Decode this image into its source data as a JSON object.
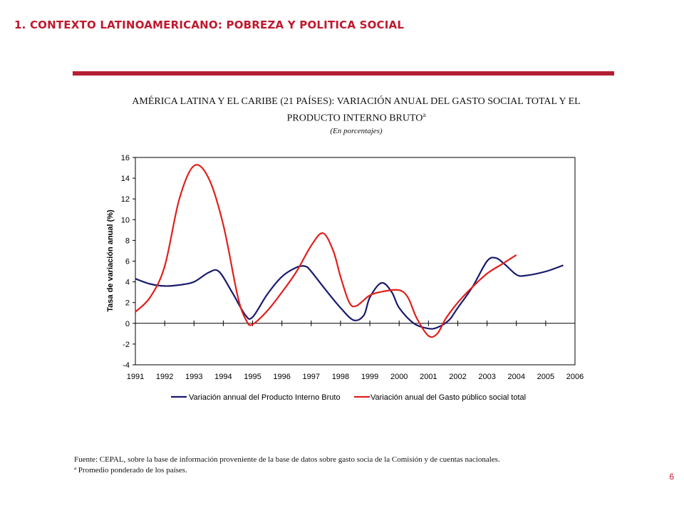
{
  "header": "1. CONTEXTO LATINOAMERICANO: POBREZA Y POLITICA SOCIAL",
  "title_line1": "AMÉRICA LATINA Y EL CARIBE (21 PAÍSES): VARIACIÓN ANUAL DEL GASTO SOCIAL TOTAL Y EL",
  "title_line2": "PRODUCTO INTERNO BRUTO",
  "title_sup": "a",
  "subtitle": "(En porcentajes)",
  "source_line1": "Fuente: CEPAL, sobre la base de información proveniente de la base de datos sobre gasto socia de la Comisión y de cuentas nacionales.",
  "source_line2": "ª Promedio ponderado de los países.",
  "page_number": "6",
  "chart_data": {
    "type": "line",
    "ylabel": "Tasa de variación anual (%)",
    "xlabel": "",
    "x": [
      "1991",
      "1992",
      "1993",
      "1994",
      "1995",
      "1996",
      "1997",
      "1998",
      "1999",
      "2000",
      "2001",
      "2002",
      "2003",
      "2004",
      "2005",
      "2006"
    ],
    "ylim": [
      -4,
      16
    ],
    "yticks": [
      -4,
      -2,
      0,
      2,
      4,
      6,
      8,
      10,
      12,
      14,
      16
    ],
    "grid": false,
    "legend": "bottom",
    "series": [
      {
        "name": "Variación annual del Producto Interno Bruto",
        "color": "#1a1a6e",
        "points": [
          [
            1991,
            4.3
          ],
          [
            1991.5,
            3.8
          ],
          [
            1992,
            3.6
          ],
          [
            1992.5,
            3.7
          ],
          [
            1993,
            4.0
          ],
          [
            1993.5,
            4.9
          ],
          [
            1993.85,
            5.0
          ],
          [
            1994.3,
            3.0
          ],
          [
            1994.75,
            0.8
          ],
          [
            1995,
            0.6
          ],
          [
            1995.5,
            2.8
          ],
          [
            1996,
            4.5
          ],
          [
            1996.5,
            5.4
          ],
          [
            1996.8,
            5.5
          ],
          [
            1997,
            5.0
          ],
          [
            1997.5,
            3.2
          ],
          [
            1998,
            1.5
          ],
          [
            1998.45,
            0.3
          ],
          [
            1998.8,
            0.8
          ],
          [
            1999,
            2.5
          ],
          [
            1999.4,
            3.9
          ],
          [
            1999.75,
            3.0
          ],
          [
            2000,
            1.5
          ],
          [
            2000.5,
            0.0
          ],
          [
            2001,
            -0.5
          ],
          [
            2001.3,
            -0.4
          ],
          [
            2001.7,
            0.3
          ],
          [
            2002,
            1.5
          ],
          [
            2002.5,
            3.5
          ],
          [
            2003,
            6.0
          ],
          [
            2003.3,
            6.3
          ],
          [
            2003.6,
            5.7
          ],
          [
            2004,
            4.7
          ],
          [
            2004.3,
            4.6
          ],
          [
            2005,
            5.0
          ],
          [
            2005.6,
            5.6
          ]
        ]
      },
      {
        "name": "Variación anual del Gasto público social total",
        "color": "#e0201c",
        "points": [
          [
            1991,
            1.1
          ],
          [
            1991.5,
            2.5
          ],
          [
            1992,
            5.5
          ],
          [
            1992.5,
            12.0
          ],
          [
            1993,
            15.2
          ],
          [
            1993.5,
            14.0
          ],
          [
            1994,
            9.5
          ],
          [
            1994.5,
            2.5
          ],
          [
            1994.8,
            0.2
          ],
          [
            1995,
            -0.1
          ],
          [
            1995.5,
            1.2
          ],
          [
            1996,
            3.0
          ],
          [
            1996.5,
            5.0
          ],
          [
            1997,
            7.5
          ],
          [
            1997.4,
            8.7
          ],
          [
            1997.75,
            7.0
          ],
          [
            1998,
            4.5
          ],
          [
            1998.3,
            2.0
          ],
          [
            1998.55,
            1.7
          ],
          [
            1999,
            2.7
          ],
          [
            1999.5,
            3.1
          ],
          [
            2000,
            3.2
          ],
          [
            2000.3,
            2.5
          ],
          [
            2000.6,
            0.5
          ],
          [
            2001,
            -1.2
          ],
          [
            2001.3,
            -1.0
          ],
          [
            2001.6,
            0.5
          ],
          [
            2002,
            2.0
          ],
          [
            2002.5,
            3.5
          ],
          [
            2003,
            4.8
          ],
          [
            2003.5,
            5.7
          ],
          [
            2004,
            6.6
          ]
        ]
      }
    ]
  }
}
